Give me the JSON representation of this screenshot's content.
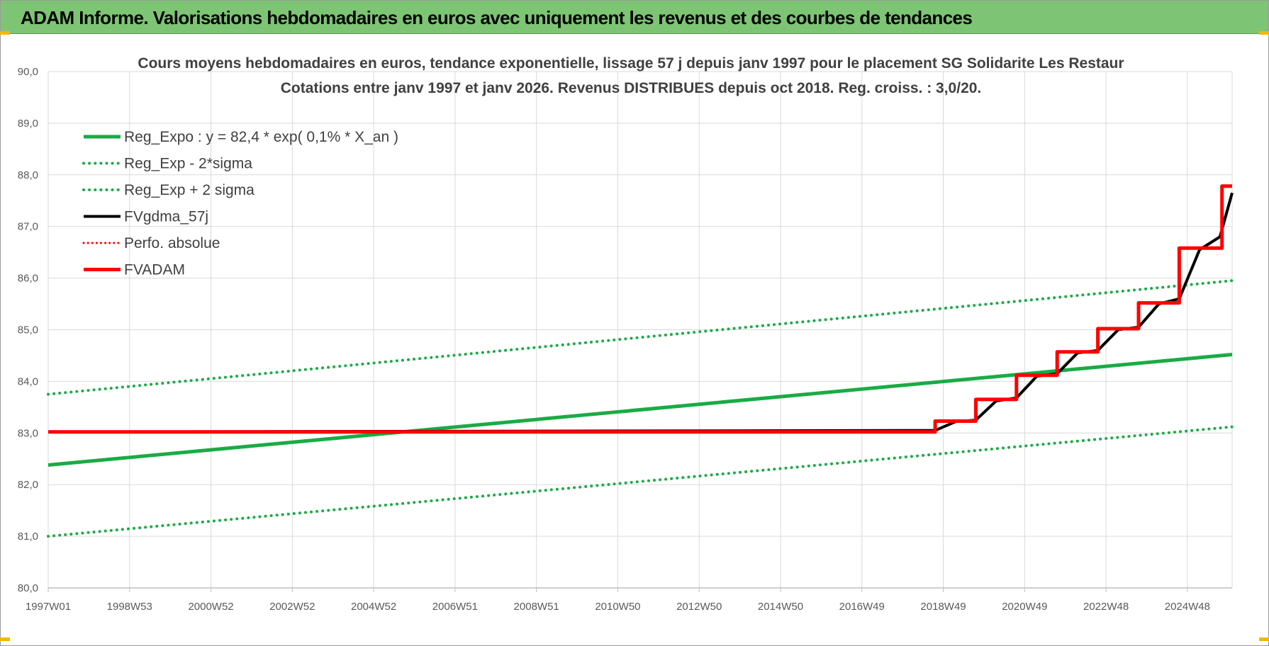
{
  "banner": {
    "title": "ADAM Informe. Valorisations hebdomadaires en euros avec uniquement les revenus et des courbes de tendances"
  },
  "colors": {
    "banner_bg": "#7dc574",
    "trend_green": "#1aab45",
    "smooth_black": "#000000",
    "adam_red": "#ff0000",
    "grid": "#d9d9d9"
  },
  "chart_data": {
    "type": "line",
    "title_line1": "Cours moyens hebdomadaires en euros, tendance exponentielle, lissage 57 j depuis janv 1997  pour le placement SG Solidarite Les Restaur",
    "title_line2": "Cotations entre janv 1997 et janv 2026. Revenus DISTRIBUES depuis oct 2018. Reg. croiss. : 3,0/20.",
    "xlabel": "",
    "ylabel": "",
    "x_range_year": [
      1997.0,
      2026.1
    ],
    "x_ticks": [
      "1997W01",
      "1998W53",
      "2000W52",
      "2002W52",
      "2004W52",
      "2006W51",
      "2008W51",
      "2010W50",
      "2012W50",
      "2014W50",
      "2016W49",
      "2018W49",
      "2020W49",
      "2022W48",
      "2024W48"
    ],
    "x_tick_years": [
      1997.0,
      1999.0,
      2001.0,
      2003.0,
      2005.0,
      2007.0,
      2009.0,
      2011.0,
      2013.0,
      2015.0,
      2017.0,
      2019.0,
      2021.0,
      2023.0,
      2025.0
    ],
    "ylim": [
      80.0,
      90.0
    ],
    "y_ticks": [
      "80,0",
      "81,0",
      "82,0",
      "83,0",
      "84,0",
      "85,0",
      "86,0",
      "87,0",
      "88,0",
      "89,0",
      "90,0"
    ],
    "grid": true,
    "legend_position": "top-left",
    "series": [
      {
        "name": "Reg_Expo : y = 82,4 * exp( 0,1% *  X_an )",
        "style": "solid-green",
        "x": [
          1997.0,
          2026.1
        ],
        "y": [
          82.38,
          84.52
        ]
      },
      {
        "name": "Reg_Exp - 2*sigma",
        "style": "dotted-green",
        "x": [
          1997.0,
          2026.1
        ],
        "y": [
          81.0,
          83.12
        ]
      },
      {
        "name": "Reg_Exp + 2 sigma",
        "style": "dotted-green",
        "x": [
          1997.0,
          2026.1
        ],
        "y": [
          83.75,
          85.95
        ]
      },
      {
        "name": "FVgdma_57j",
        "style": "solid-black",
        "x": [
          1997.0,
          2018.8,
          2019.3,
          2019.8,
          2020.3,
          2020.8,
          2021.3,
          2021.8,
          2022.3,
          2022.8,
          2023.3,
          2023.8,
          2024.3,
          2024.8,
          2025.3,
          2025.8,
          2026.1
        ],
        "y": [
          83.02,
          83.05,
          83.22,
          83.25,
          83.62,
          83.68,
          84.1,
          84.15,
          84.55,
          84.6,
          85.0,
          85.05,
          85.5,
          85.6,
          86.55,
          86.8,
          87.65
        ]
      },
      {
        "name": "Perfo. absolue",
        "style": "dotted-red",
        "x": [],
        "y": []
      },
      {
        "name": "FVADAM",
        "style": "solid-red",
        "x": [
          1997.0,
          2018.8,
          2018.8,
          2019.8,
          2019.8,
          2020.8,
          2020.8,
          2021.8,
          2021.8,
          2022.8,
          2022.8,
          2023.8,
          2023.8,
          2024.8,
          2024.8,
          2025.85,
          2025.85,
          2026.1
        ],
        "y": [
          83.02,
          83.02,
          83.23,
          83.23,
          83.65,
          83.65,
          84.12,
          84.12,
          84.57,
          84.57,
          85.02,
          85.02,
          85.52,
          85.52,
          86.58,
          86.58,
          87.78,
          87.78
        ]
      }
    ]
  }
}
